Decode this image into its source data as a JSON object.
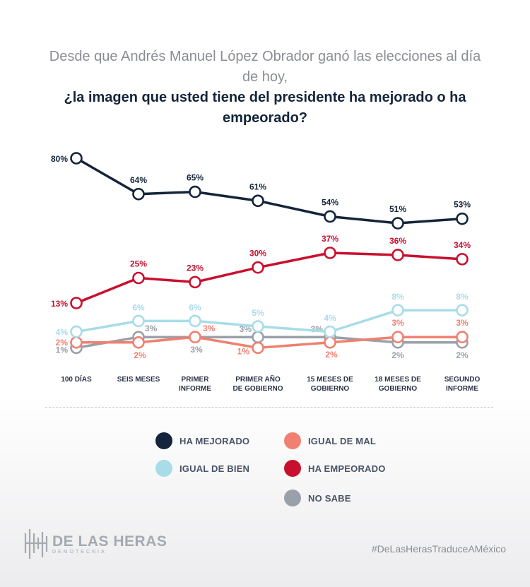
{
  "title": {
    "line1": "Desde que Andrés Manuel López Obrador ganó las elecciones al día de hoy,",
    "line2": "¿la imagen que usted tiene del presidente ha mejorado o ha empeorado?"
  },
  "chart_data": {
    "type": "line",
    "categories": [
      "100 DÍAS",
      "SEIS MESES",
      "PRIMER INFORME",
      "PRIMER AÑO DE GOBIERNO",
      "15 MESES DE GOBIERNO",
      "18 MESES DE GOBIERNO",
      "SEGUNDO INFORME"
    ],
    "series": [
      {
        "name": "HA MEJORADO",
        "color": "#14243a",
        "values": [
          80,
          64,
          65,
          61,
          54,
          51,
          53
        ],
        "labels": [
          "80%",
          "64%",
          "65%",
          "61%",
          "54%",
          "51%",
          "53%"
        ]
      },
      {
        "name": "HA EMPEORADO",
        "color": "#c8102e",
        "values": [
          13,
          25,
          23,
          30,
          37,
          36,
          34
        ],
        "labels": [
          "13%",
          "25%",
          "23%",
          "30%",
          "37%",
          "36%",
          "34%"
        ]
      },
      {
        "name": "IGUAL DE BIEN",
        "color": "#a8dce9",
        "values": [
          4,
          6,
          6,
          5,
          4,
          8,
          8
        ],
        "labels": [
          "4%",
          "6%",
          "6%",
          "5%",
          "4%",
          "8%",
          "8%"
        ]
      },
      {
        "name": "IGUAL DE MAL",
        "color": "#f08070",
        "values": [
          2,
          2,
          3,
          1,
          2,
          3,
          3
        ],
        "labels": [
          "2%",
          "2%",
          "3%",
          "1%",
          "2%",
          "3%",
          "3%"
        ]
      },
      {
        "name": "NO SABE",
        "color": "#9aa0a9",
        "values": [
          1,
          3,
          3,
          3,
          3,
          2,
          2
        ],
        "labels": [
          "1%",
          "3%",
          "3%",
          "3%",
          "3%",
          "2%",
          "2%"
        ]
      }
    ],
    "grid": false,
    "legend_placement": "bottom"
  },
  "legend": [
    {
      "label": "HA MEJORADO",
      "color": "#14243a"
    },
    {
      "label": "IGUAL DE MAL",
      "color": "#f08070"
    },
    {
      "label": "IGUAL DE BIEN",
      "color": "#a8dce9"
    },
    {
      "label": "HA EMPEORADO",
      "color": "#c8102e"
    },
    {
      "label": "NO SABE",
      "color": "#9aa0a9"
    }
  ],
  "footer": {
    "brand_name": "DE LAS HERAS",
    "brand_sub": "DEMOTECNIA",
    "hashtag": "#DeLasHerasTraduceAMéxico"
  }
}
